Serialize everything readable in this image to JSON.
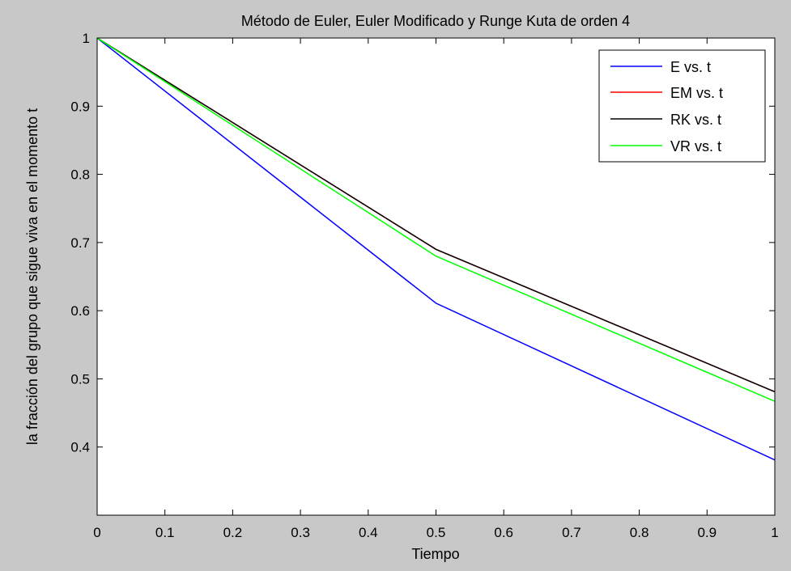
{
  "figure": {
    "background": "#c8c8c8",
    "axes_background": "#ffffff"
  },
  "chart_data": {
    "type": "line",
    "title": "Método de Euler, Euler Modificado y Runge Kuta de orden 4",
    "xlabel": "Tiempo",
    "ylabel": "la fracción del grupo que sigue viva en el momento t",
    "xlim": [
      0,
      1
    ],
    "ylim": [
      0.3,
      1
    ],
    "xticks": [
      0,
      0.1,
      0.2,
      0.3,
      0.4,
      0.5,
      0.6,
      0.7,
      0.8,
      0.9,
      1
    ],
    "xtick_labels": [
      "0",
      "0.1",
      "0.2",
      "0.3",
      "0.4",
      "0.5",
      "0.6",
      "0.7",
      "0.8",
      "0.9",
      "1"
    ],
    "yticks": [
      0.4,
      0.5,
      0.6,
      0.7,
      0.8,
      0.9,
      1
    ],
    "ytick_labels": [
      "0.4",
      "0.5",
      "0.6",
      "0.7",
      "0.8",
      "0.9",
      "1"
    ],
    "grid": false,
    "legend_position": "top-right",
    "series": [
      {
        "name": "E vs. t",
        "color": "#0000ff",
        "x": [
          0,
          0.5,
          1
        ],
        "y": [
          1,
          0.611,
          0.381
        ]
      },
      {
        "name": "EM vs. t",
        "color": "#ff0000",
        "x": [
          0,
          0.5,
          1
        ],
        "y": [
          1,
          0.69,
          0.481
        ]
      },
      {
        "name": "RK vs. t",
        "color": "#000000",
        "x": [
          0,
          0.5,
          1
        ],
        "y": [
          1,
          0.69,
          0.481
        ]
      },
      {
        "name": "VR vs. t",
        "color": "#00ff00",
        "x": [
          0,
          0.5,
          1
        ],
        "y": [
          1,
          0.68,
          0.467
        ]
      }
    ]
  }
}
